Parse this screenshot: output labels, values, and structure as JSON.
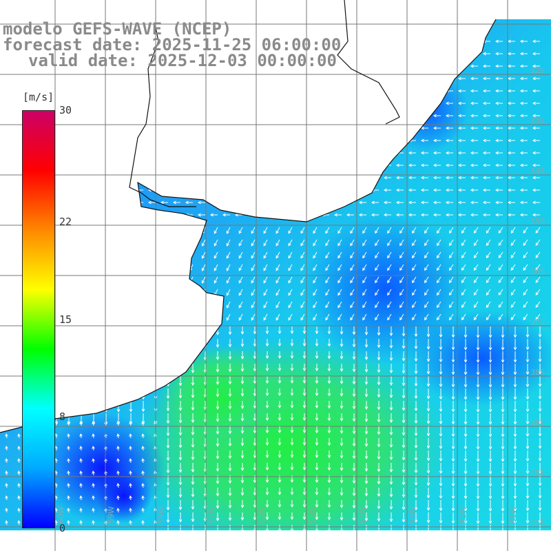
{
  "title": {
    "line1": "modelo GEFS-WAVE (NCEP)",
    "line2": "forecast date: 2025-11-25 06:00:00",
    "line3": "valid date: 2025-12-03 00:00:00"
  },
  "colorbar": {
    "unit": "[m/s]",
    "min": 0,
    "max": 30,
    "ticks": [
      {
        "label": "30",
        "value": 30
      },
      {
        "label": "22",
        "value": 22
      },
      {
        "label": "15",
        "value": 15
      },
      {
        "label": "8",
        "value": 8
      },
      {
        "label": "0",
        "value": 0
      }
    ],
    "colors": [
      "#0000ff",
      "#00aaff",
      "#00ffff",
      "#00ff00",
      "#ffff00",
      "#ff8800",
      "#ff0000",
      "#cc0066"
    ]
  },
  "map": {
    "lat_labels": [
      "32S",
      "33S",
      "34S",
      "35S",
      "36S",
      "37S",
      "38S",
      "39S",
      "40S",
      "41S"
    ],
    "lon_labels": [
      "60W",
      "59W",
      "58W",
      "57W",
      "56W",
      "55W",
      "54W",
      "53W",
      "52W",
      "51W"
    ]
  }
}
